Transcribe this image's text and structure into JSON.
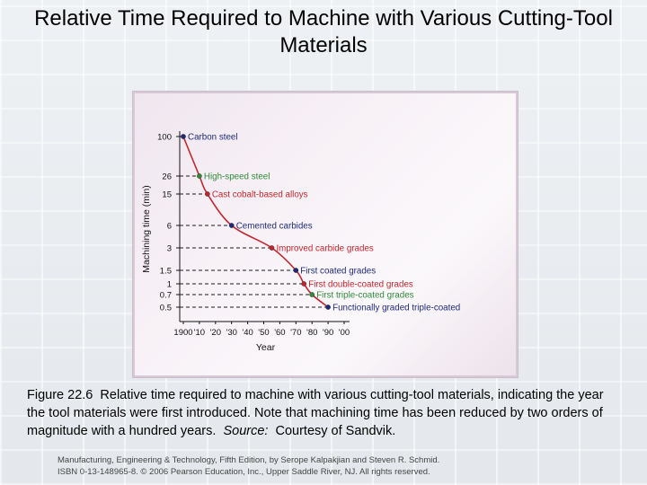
{
  "slide": {
    "title": "Relative Time Required to Machine with Various Cutting-Tool Materials",
    "caption_figure": "Figure 22.6",
    "caption_text": "Relative time required to machine with various cutting-tool materials, indicating the year the tool materials were first introduced.  Note that machining time has been reduced by two orders of magnitude with a hundred years.",
    "caption_source_label": "Source:",
    "caption_source_text": "Courtesy of Sandvik.",
    "footer_line1": "Manufacturing, Engineering & Technology, Fifth Edition, by Serope Kalpakjian and Steven R. Schmid.",
    "footer_line2": "ISBN 0-13-148965-8. © 2006 Pearson Education, Inc., Upper Saddle River, NJ.  All rights reserved."
  },
  "chart_data": {
    "type": "line",
    "xlabel": "Year",
    "ylabel": "Machining time (min)",
    "x_tick_labels": [
      "1900",
      "'10",
      "'20",
      "'30",
      "'40",
      "'50",
      "'60",
      "'70",
      "'80",
      "'90",
      "'00"
    ],
    "y_tick_labels": [
      "100",
      "26",
      "15",
      "6",
      "3",
      "1.5",
      "1",
      "0.7",
      "0.5"
    ],
    "xlim": [
      1900,
      2000
    ],
    "y_scale": "categorical-levels",
    "grid": false,
    "points": [
      {
        "label": "Carbon steel",
        "year": 1900,
        "time": 100,
        "color": "#1d2a7a"
      },
      {
        "label": "High-speed steel",
        "year": 1910,
        "time": 26,
        "color": "#2f8a3a"
      },
      {
        "label": "Cast cobalt-based alloys",
        "year": 1915,
        "time": 15,
        "color": "#c0262d"
      },
      {
        "label": "Cemented carbides",
        "year": 1930,
        "time": 6,
        "color": "#1d2a7a"
      },
      {
        "label": "Improved carbide grades",
        "year": 1955,
        "time": 3,
        "color": "#c0262d"
      },
      {
        "label": "First coated grades",
        "year": 1970,
        "time": 1.5,
        "color": "#1d2a7a"
      },
      {
        "label": "First double-coated grades",
        "year": 1975,
        "time": 1,
        "color": "#c0262d"
      },
      {
        "label": "First triple-coated grades",
        "year": 1980,
        "time": 0.7,
        "color": "#2f8a3a"
      },
      {
        "label": "Functionally graded triple-coated",
        "year": 1990,
        "time": 0.5,
        "color": "#1d2a7a"
      }
    ],
    "curve_color": "#c0262d",
    "leader_color": "#1a1a1a"
  }
}
